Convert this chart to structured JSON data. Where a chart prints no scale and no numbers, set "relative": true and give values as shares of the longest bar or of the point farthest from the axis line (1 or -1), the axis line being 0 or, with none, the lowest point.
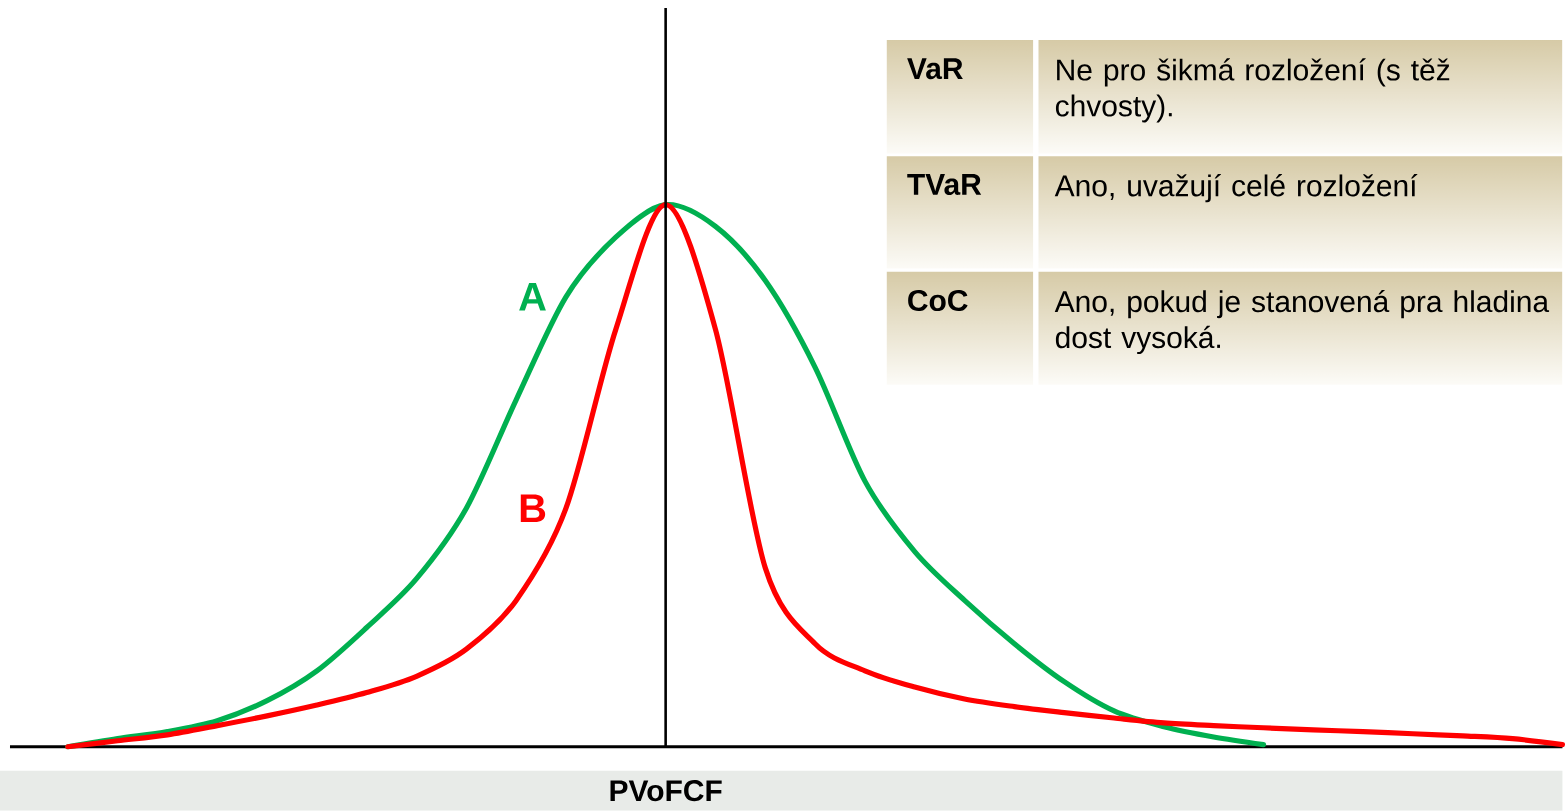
{
  "chart_data": [
    {
      "type": "line",
      "relative": true,
      "xlabel": "PVoFCF",
      "categories": [
        null,
        null,
        null,
        null,
        null,
        null,
        null,
        null,
        null,
        null,
        null,
        null,
        null,
        null,
        null,
        null,
        null,
        null,
        null,
        null,
        null,
        null,
        null,
        null,
        null,
        null,
        null,
        null,
        null,
        null,
        null
      ],
      "series": [
        {
          "name": "A",
          "color": "#00b050",
          "values": [
            0,
            0.015,
            0.028,
            0.048,
            0.085,
            0.14,
            0.22,
            0.31,
            0.44,
            0.64,
            0.83,
            0.94,
            1,
            0.96,
            0.86,
            0.7,
            0.49,
            0.36,
            0.27,
            0.19,
            0.12,
            0.066,
            0.037,
            0.018,
            0.004,
            null,
            null,
            null,
            null,
            null,
            null
          ]
        },
        {
          "name": "B",
          "color": "#ff0000",
          "values": [
            0,
            0.011,
            0.022,
            0.039,
            0.057,
            0.077,
            0.1,
            0.13,
            0.18,
            0.27,
            0.44,
            0.77,
            1,
            0.77,
            0.33,
            0.19,
            0.14,
            0.11,
            0.088,
            0.074,
            0.063,
            0.053,
            0.044,
            0.039,
            0.035,
            0.031,
            0.028,
            0.024,
            0.02,
            0.015,
            0.004
          ]
        }
      ]
    },
    {
      "type": "other",
      "annotations": [
        "VaR",
        "Ne pro šikmá rozložení (s těž chvosty).",
        "TVaR",
        "Ano, uvažují celé rozložení",
        "CoC",
        "Ano, pokud je stanovená pra hladina dost vysoká."
      ]
    }
  ]
}
